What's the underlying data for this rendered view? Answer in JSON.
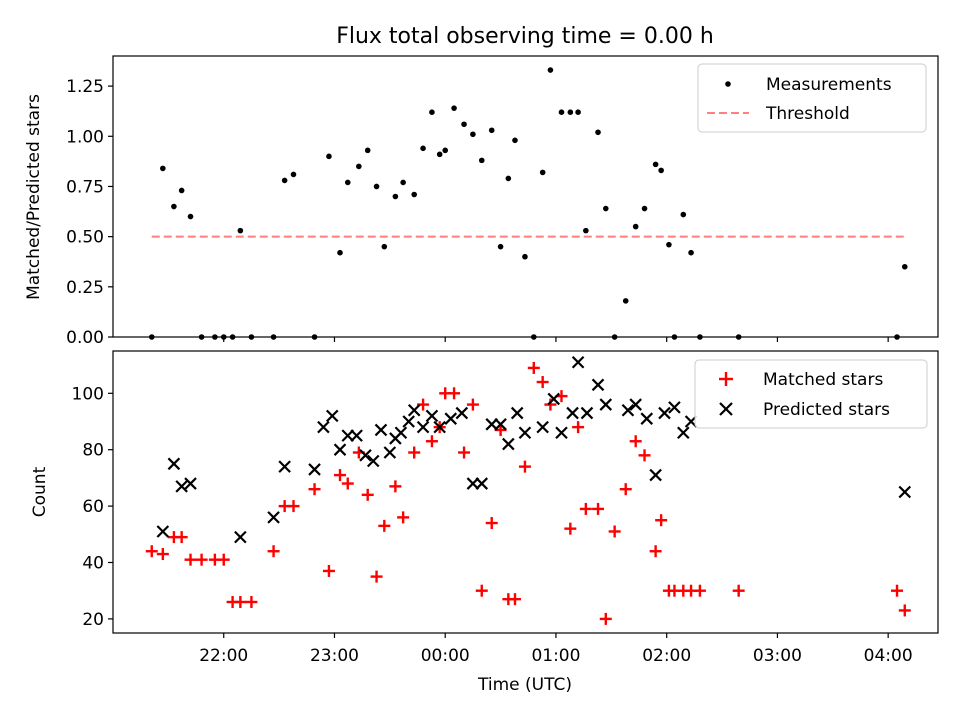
{
  "chart_data": [
    {
      "type": "scatter",
      "title": "Flux total observing time = 0.00 h",
      "xlabel": "",
      "ylabel": "Matched/Predicted stars",
      "ylim": [
        0,
        1.4
      ],
      "yticks": [
        0,
        0.25,
        0.5,
        0.75,
        1.0,
        1.25
      ],
      "ytick_labels": [
        "0.00",
        "0.25",
        "0.50",
        "0.75",
        "1.00",
        "1.25"
      ],
      "xlim_hours": [
        21.0,
        28.45
      ],
      "legend_position": "upper-right",
      "series": [
        {
          "name": "Measurements",
          "marker": "dot",
          "color": "#000000",
          "x": [
            21.35,
            21.45,
            21.55,
            21.62,
            21.7,
            21.8,
            21.92,
            22.0,
            22.08,
            22.15,
            22.25,
            22.45,
            22.55,
            22.63,
            22.82,
            22.95,
            23.05,
            23.12,
            23.22,
            23.3,
            23.38,
            23.45,
            23.55,
            23.62,
            23.72,
            23.8,
            23.88,
            23.95,
            24.0,
            24.08,
            24.17,
            24.25,
            24.33,
            24.42,
            24.5,
            24.57,
            24.63,
            24.72,
            24.8,
            24.88,
            24.95,
            25.05,
            25.13,
            25.2,
            25.27,
            25.38,
            25.45,
            25.53,
            25.63,
            25.72,
            25.8,
            25.9,
            25.95,
            26.02,
            26.07,
            26.15,
            26.22,
            26.3,
            26.65,
            28.08,
            28.15
          ],
          "y": [
            0,
            0.84,
            0.65,
            0.73,
            0.6,
            0,
            0,
            0,
            0,
            0.53,
            0,
            0,
            0.78,
            0.81,
            0,
            0.9,
            0.42,
            0.77,
            0.85,
            0.93,
            0.75,
            0.45,
            0.7,
            0.77,
            0.71,
            0.94,
            1.12,
            0.91,
            0.93,
            1.14,
            1.06,
            1.01,
            0.88,
            1.03,
            0.45,
            0.79,
            0.98,
            0.4,
            0,
            0.82,
            1.33,
            1.12,
            1.12,
            1.12,
            0.53,
            1.02,
            0.64,
            0,
            0.18,
            0.55,
            0.64,
            0.86,
            0.83,
            0.46,
            0,
            0.61,
            0.42,
            0,
            0,
            0,
            0.35
          ]
        },
        {
          "name": "Threshold",
          "line": "dashed",
          "color": "#ff7f7f",
          "x": [
            21.35,
            28.15
          ],
          "y": [
            0.5,
            0.5
          ]
        }
      ]
    },
    {
      "type": "scatter",
      "title": "",
      "xlabel": "Time (UTC)",
      "ylabel": "Count",
      "ylim": [
        15,
        115
      ],
      "yticks": [
        20,
        40,
        60,
        80,
        100
      ],
      "xlim_hours": [
        21.0,
        28.45
      ],
      "xticks_hours": [
        22,
        23,
        24,
        25,
        26,
        27,
        28
      ],
      "xtick_labels": [
        "22:00",
        "23:00",
        "00:00",
        "01:00",
        "02:00",
        "03:00",
        "04:00"
      ],
      "legend_position": "upper-right",
      "series": [
        {
          "name": "Matched stars",
          "marker": "plus",
          "color": "#ff0000",
          "x": [
            21.35,
            21.45,
            21.55,
            21.62,
            21.7,
            21.8,
            21.92,
            22.0,
            22.08,
            22.15,
            22.25,
            22.45,
            22.55,
            22.63,
            22.82,
            22.95,
            23.05,
            23.12,
            23.22,
            23.3,
            23.38,
            23.45,
            23.55,
            23.62,
            23.72,
            23.8,
            23.88,
            23.95,
            24.0,
            24.08,
            24.17,
            24.25,
            24.33,
            24.42,
            24.5,
            24.57,
            24.63,
            24.72,
            24.8,
            24.88,
            24.95,
            25.05,
            25.13,
            25.2,
            25.27,
            25.38,
            25.45,
            25.53,
            25.63,
            25.72,
            25.8,
            25.9,
            25.95,
            26.02,
            26.07,
            26.15,
            26.22,
            26.3,
            26.65,
            28.08,
            28.15
          ],
          "y": [
            44,
            43,
            49,
            49,
            41,
            41,
            41,
            41,
            26,
            26,
            26,
            44,
            60,
            60,
            66,
            37,
            71,
            68,
            79,
            64,
            35,
            53,
            67,
            56,
            79,
            96,
            83,
            88,
            100,
            100,
            79,
            96,
            30,
            54,
            87,
            27,
            27,
            74,
            109,
            104,
            96,
            99,
            52,
            88,
            59,
            59,
            20,
            51,
            66,
            83,
            78,
            44,
            55,
            30,
            30,
            30,
            30,
            30,
            30,
            30,
            23
          ]
        },
        {
          "name": "Predicted stars",
          "marker": "x",
          "color": "#000000",
          "x": [
            21.45,
            21.55,
            21.62,
            21.7,
            22.15,
            22.45,
            22.55,
            22.82,
            22.9,
            22.98,
            23.05,
            23.12,
            23.2,
            23.28,
            23.35,
            23.42,
            23.5,
            23.55,
            23.6,
            23.67,
            23.72,
            23.8,
            23.88,
            23.95,
            24.05,
            24.15,
            24.25,
            24.33,
            24.42,
            24.5,
            24.57,
            24.65,
            24.72,
            24.88,
            24.98,
            25.05,
            25.15,
            25.2,
            25.28,
            25.38,
            25.45,
            25.65,
            25.72,
            25.82,
            25.9,
            25.98,
            26.07,
            26.15,
            26.22,
            28.15
          ],
          "y": [
            51,
            75,
            67,
            68,
            49,
            56,
            74,
            73,
            88,
            92,
            80,
            85,
            85,
            78,
            76,
            87,
            79,
            84,
            86,
            90,
            94,
            88,
            92,
            88,
            91,
            93,
            68,
            68,
            89,
            89,
            82,
            93,
            86,
            88,
            98,
            86,
            93,
            111,
            93,
            103,
            96,
            94,
            96,
            91,
            71,
            93,
            95,
            86,
            90,
            65
          ]
        }
      ]
    }
  ]
}
